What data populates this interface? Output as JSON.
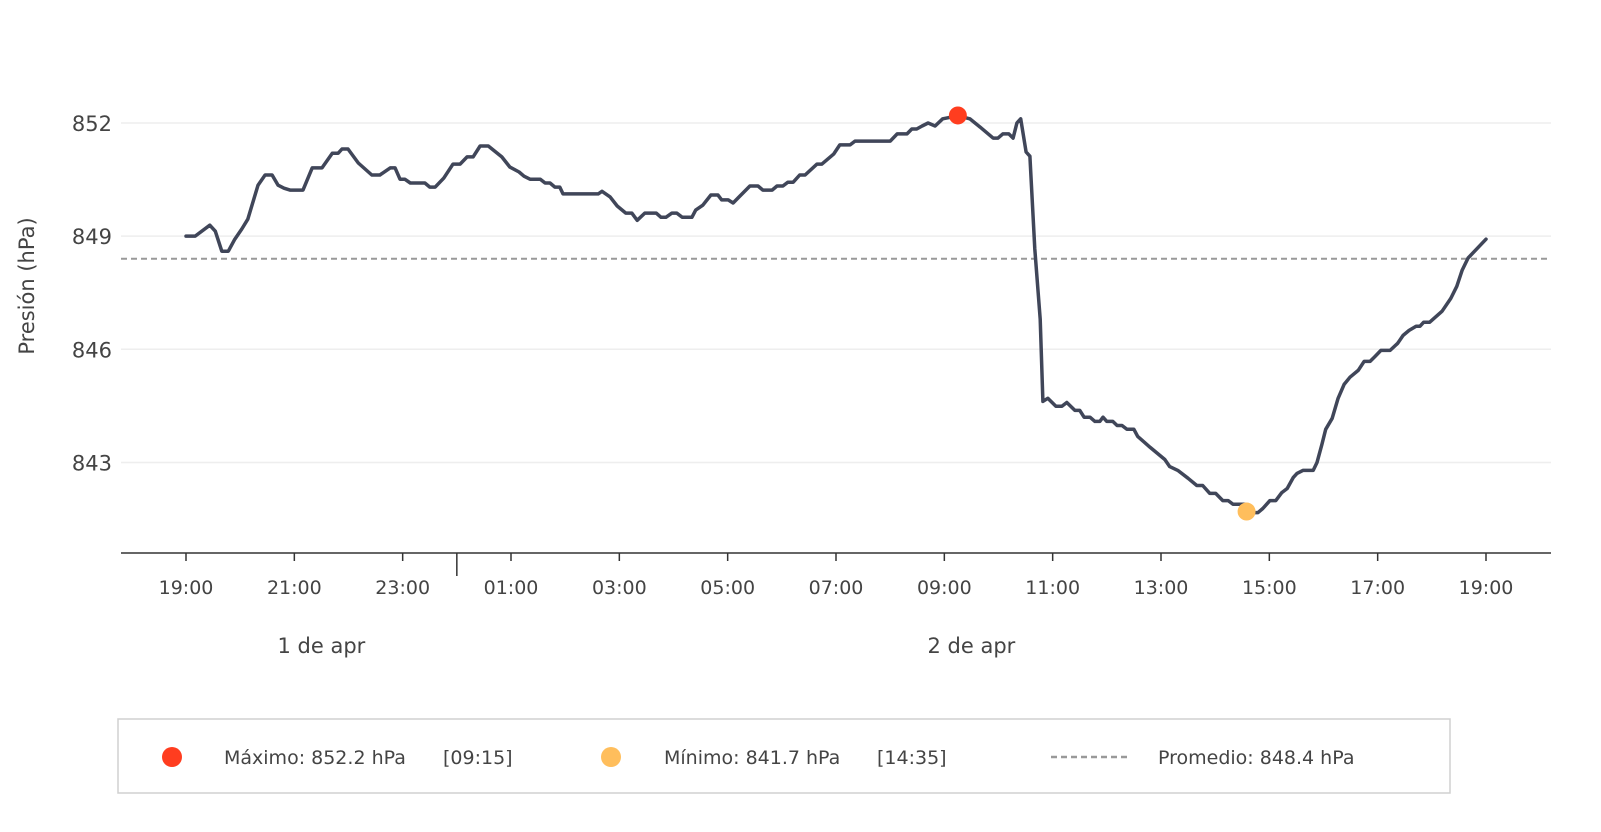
{
  "chart_data": {
    "type": "line",
    "title": "",
    "ylabel": "Presión (hPa)",
    "xlabel": "",
    "x_unit": "hours since 1 de apr 19:00",
    "ylim": [
      840.6,
      854.2
    ],
    "xlim": [
      -1.2,
      25.2
    ],
    "yticks": [
      843,
      846,
      849,
      852
    ],
    "ytick_labels": [
      "843",
      "846",
      "849",
      "852"
    ],
    "xticks": [
      0,
      2,
      4,
      6,
      8,
      10,
      12,
      14,
      16,
      18,
      20,
      22,
      24
    ],
    "xtick_labels": [
      "19:00",
      "21:00",
      "23:00",
      "01:00",
      "03:00",
      "05:00",
      "07:00",
      "09:00",
      "11:00",
      "13:00",
      "15:00",
      "17:00",
      "19:00"
    ],
    "day_separator": 5,
    "day_labels": [
      {
        "label": "1 de apr",
        "at": 2.5
      },
      {
        "label": "2 de apr",
        "at": 14.5
      }
    ],
    "grid": true,
    "line_color": "#404659",
    "series": [
      {
        "name": "Presión",
        "x": [
          0,
          0.17,
          0.44,
          0.54,
          0.66,
          0.78,
          0.9,
          1.03,
          1.14,
          1.33,
          1.46,
          1.59,
          1.7,
          1.81,
          1.92,
          2.16,
          2.33,
          2.51,
          2.7,
          2.81,
          2.88,
          2.99,
          3.18,
          3.43,
          3.58,
          3.77,
          3.86,
          3.95,
          4.04,
          4.14,
          4.41,
          4.5,
          4.6,
          4.76,
          4.93,
          5.06,
          5.19,
          5.3,
          5.43,
          5.58,
          5.83,
          5.98,
          6.15,
          6.24,
          6.35,
          6.54,
          6.63,
          6.72,
          6.81,
          6.9,
          6.96,
          7.61,
          7.68,
          7.83,
          7.96,
          8.12,
          8.23,
          8.33,
          8.47,
          8.68,
          8.77,
          8.86,
          8.97,
          9.06,
          9.16,
          9.34,
          9.41,
          9.54,
          9.69,
          9.82,
          9.89,
          10.01,
          10.1,
          10.19,
          10.41,
          10.56,
          10.65,
          10.82,
          10.91,
          11.02,
          11.11,
          11.21,
          11.33,
          11.43,
          11.65,
          11.74,
          11.96,
          12.07,
          12.26,
          12.35,
          13.0,
          13.13,
          13.31,
          13.4,
          13.49,
          13.59,
          13.7,
          13.83,
          13.97,
          14.25,
          14.47,
          14.66,
          14.9,
          14.99,
          15.08,
          15.19,
          15.27,
          15.34,
          15.41,
          15.51,
          15.58,
          15.67,
          15.77,
          15.82,
          15.91,
          16.06,
          16.17,
          16.26,
          16.41,
          16.5,
          16.58,
          16.69,
          16.78,
          16.87,
          16.93,
          17.0,
          17.11,
          17.19,
          17.28,
          17.37,
          17.5,
          17.57,
          17.8,
          18.07,
          18.16,
          18.31,
          18.5,
          18.66,
          18.77,
          18.9,
          19.01,
          19.14,
          19.24,
          19.33,
          19.55,
          19.59,
          19.79,
          19.88,
          20.01,
          20.12,
          20.23,
          20.33,
          20.44,
          20.51,
          20.62,
          20.81,
          20.88,
          20.97,
          21.04,
          21.16,
          21.27,
          21.38,
          21.49,
          21.64,
          21.75,
          21.86,
          21.95,
          22.06,
          22.23,
          22.37,
          22.47,
          22.58,
          22.71,
          22.78,
          22.85,
          22.96,
          23.19,
          23.35,
          23.46,
          23.56,
          23.67,
          24.0
        ],
        "y": [
          849.0,
          849.0,
          849.29,
          849.13,
          848.6,
          848.6,
          848.92,
          849.19,
          849.45,
          850.35,
          850.62,
          850.62,
          850.35,
          850.27,
          850.22,
          850.22,
          850.81,
          850.81,
          851.2,
          851.2,
          851.31,
          851.31,
          850.94,
          850.62,
          850.62,
          850.81,
          850.81,
          850.51,
          850.51,
          850.41,
          850.41,
          850.3,
          850.3,
          850.54,
          850.91,
          850.91,
          851.1,
          851.1,
          851.39,
          851.39,
          851.1,
          850.83,
          850.7,
          850.59,
          850.51,
          850.51,
          850.41,
          850.41,
          850.3,
          850.3,
          850.12,
          850.12,
          850.19,
          850.04,
          849.8,
          849.61,
          849.61,
          849.42,
          849.61,
          849.61,
          849.5,
          849.5,
          849.61,
          849.61,
          849.5,
          849.5,
          849.69,
          849.82,
          850.09,
          850.09,
          849.96,
          849.96,
          849.88,
          850.01,
          850.33,
          850.33,
          850.22,
          850.22,
          850.33,
          850.33,
          850.43,
          850.43,
          850.62,
          850.62,
          850.91,
          850.91,
          851.18,
          851.42,
          851.42,
          851.52,
          851.52,
          851.71,
          851.71,
          851.84,
          851.84,
          851.92,
          852.0,
          851.92,
          852.11,
          852.19,
          852.11,
          851.89,
          851.6,
          851.6,
          851.71,
          851.71,
          851.6,
          852.0,
          852.11,
          851.23,
          851.12,
          848.66,
          846.8,
          844.62,
          844.7,
          844.49,
          844.49,
          844.59,
          844.38,
          844.38,
          844.2,
          844.2,
          844.09,
          844.09,
          844.2,
          844.09,
          844.09,
          843.98,
          843.98,
          843.88,
          843.88,
          843.69,
          843.4,
          843.08,
          842.89,
          842.79,
          842.58,
          842.39,
          842.39,
          842.18,
          842.18,
          841.99,
          841.99,
          841.89,
          841.89,
          841.67,
          841.67,
          841.78,
          841.99,
          841.99,
          842.2,
          842.31,
          842.6,
          842.71,
          842.79,
          842.79,
          843.0,
          843.48,
          843.88,
          844.17,
          844.7,
          845.07,
          845.26,
          845.44,
          845.68,
          845.68,
          845.81,
          845.97,
          845.97,
          846.16,
          846.37,
          846.5,
          846.61,
          846.61,
          846.72,
          846.72,
          847.01,
          847.35,
          847.67,
          848.1,
          848.42,
          848.92
        ]
      }
    ],
    "max": {
      "value": 852.2,
      "x": 14.25,
      "color": "#ff3d1f",
      "label": "Máximo: 852.2 hPa",
      "time": "[09:15]"
    },
    "min": {
      "value": 841.7,
      "x": 19.58,
      "color": "#ffbe5c",
      "label": "Mínimo: 841.7 hPa",
      "time": "[14:35]"
    },
    "average": {
      "value": 848.4,
      "color": "#999999",
      "label": "Promedio: 848.4 hPa"
    },
    "legend_placement": "bottom"
  }
}
